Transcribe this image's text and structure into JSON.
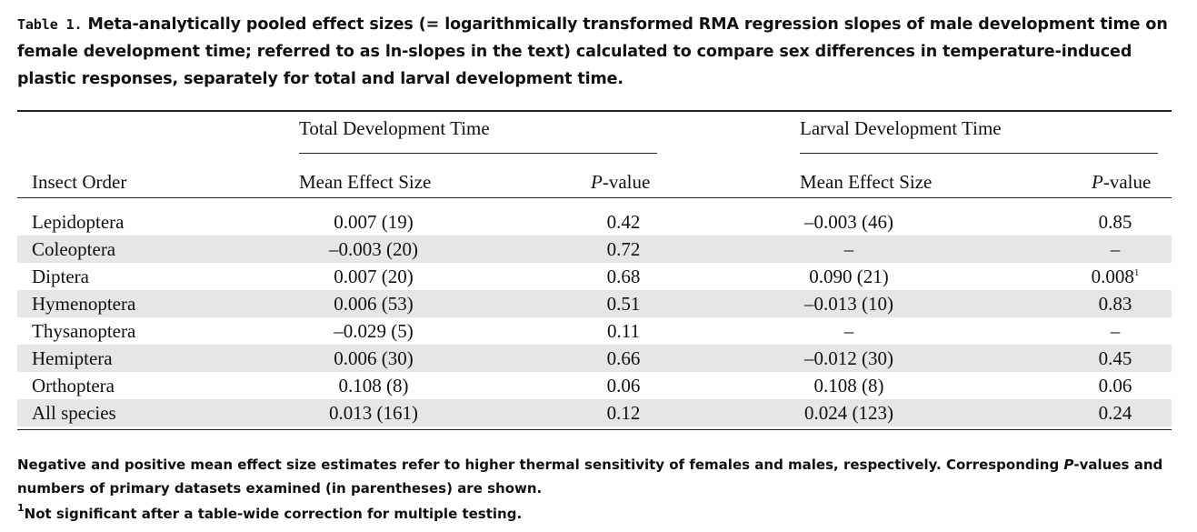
{
  "caption": {
    "label": "Table 1.",
    "text": "Meta-analytically pooled effect sizes (= logarithmically transformed RMA regression slopes of male development time on female development time; referred to as ln-slopes in the text) calculated to compare sex differences in temperature-induced plastic responses, separately for total and larval development time."
  },
  "header": {
    "group_total": "Total Development Time",
    "group_larval": "Larval Development Time",
    "col_order": "Insect Order",
    "col_mean_total": "Mean Effect Size",
    "col_p_total_italic": "P",
    "col_p_total_rest": "-value",
    "col_mean_larval": "Mean Effect Size",
    "col_p_larval_italic": "P",
    "col_p_larval_rest": "-value"
  },
  "rows": [
    {
      "order": "Lepidoptera",
      "total_mean": "0.007 (19)",
      "total_p": "0.42",
      "larval_mean": "–0.003 (46)",
      "larval_p": "0.85",
      "larval_p_sup": ""
    },
    {
      "order": "Coleoptera",
      "total_mean": "–0.003 (20)",
      "total_p": "0.72",
      "larval_mean": "–",
      "larval_p": "–",
      "larval_p_sup": ""
    },
    {
      "order": "Diptera",
      "total_mean": "0.007 (20)",
      "total_p": "0.68",
      "larval_mean": "0.090 (21)",
      "larval_p": "0.008",
      "larval_p_sup": "1"
    },
    {
      "order": "Hymenoptera",
      "total_mean": "0.006 (53)",
      "total_p": "0.51",
      "larval_mean": "–0.013 (10)",
      "larval_p": "0.83",
      "larval_p_sup": ""
    },
    {
      "order": "Thysanoptera",
      "total_mean": "–0.029 (5)",
      "total_p": "0.11",
      "larval_mean": "–",
      "larval_p": "–",
      "larval_p_sup": ""
    },
    {
      "order": "Hemiptera",
      "total_mean": "0.006 (30)",
      "total_p": "0.66",
      "larval_mean": "–0.012 (30)",
      "larval_p": "0.45",
      "larval_p_sup": ""
    },
    {
      "order": "Orthoptera",
      "total_mean": "0.108 (8)",
      "total_p": "0.06",
      "larval_mean": "0.108 (8)",
      "larval_p": "0.06",
      "larval_p_sup": ""
    },
    {
      "order": "All species",
      "total_mean": "0.013 (161)",
      "total_p": "0.12",
      "larval_mean": "0.024 (123)",
      "larval_p": "0.24",
      "larval_p_sup": ""
    }
  ],
  "footnotes": {
    "note_a_pre": "Negative and positive mean effect size estimates refer to higher thermal sensitivity of females and males, respectively. Corresponding ",
    "note_a_italic": "P",
    "note_a_post": "-values and numbers of primary datasets examined (in parentheses) are shown.",
    "note_b_sup": "1",
    "note_b_text": "Not significant after a table-wide correction for multiple testing."
  }
}
